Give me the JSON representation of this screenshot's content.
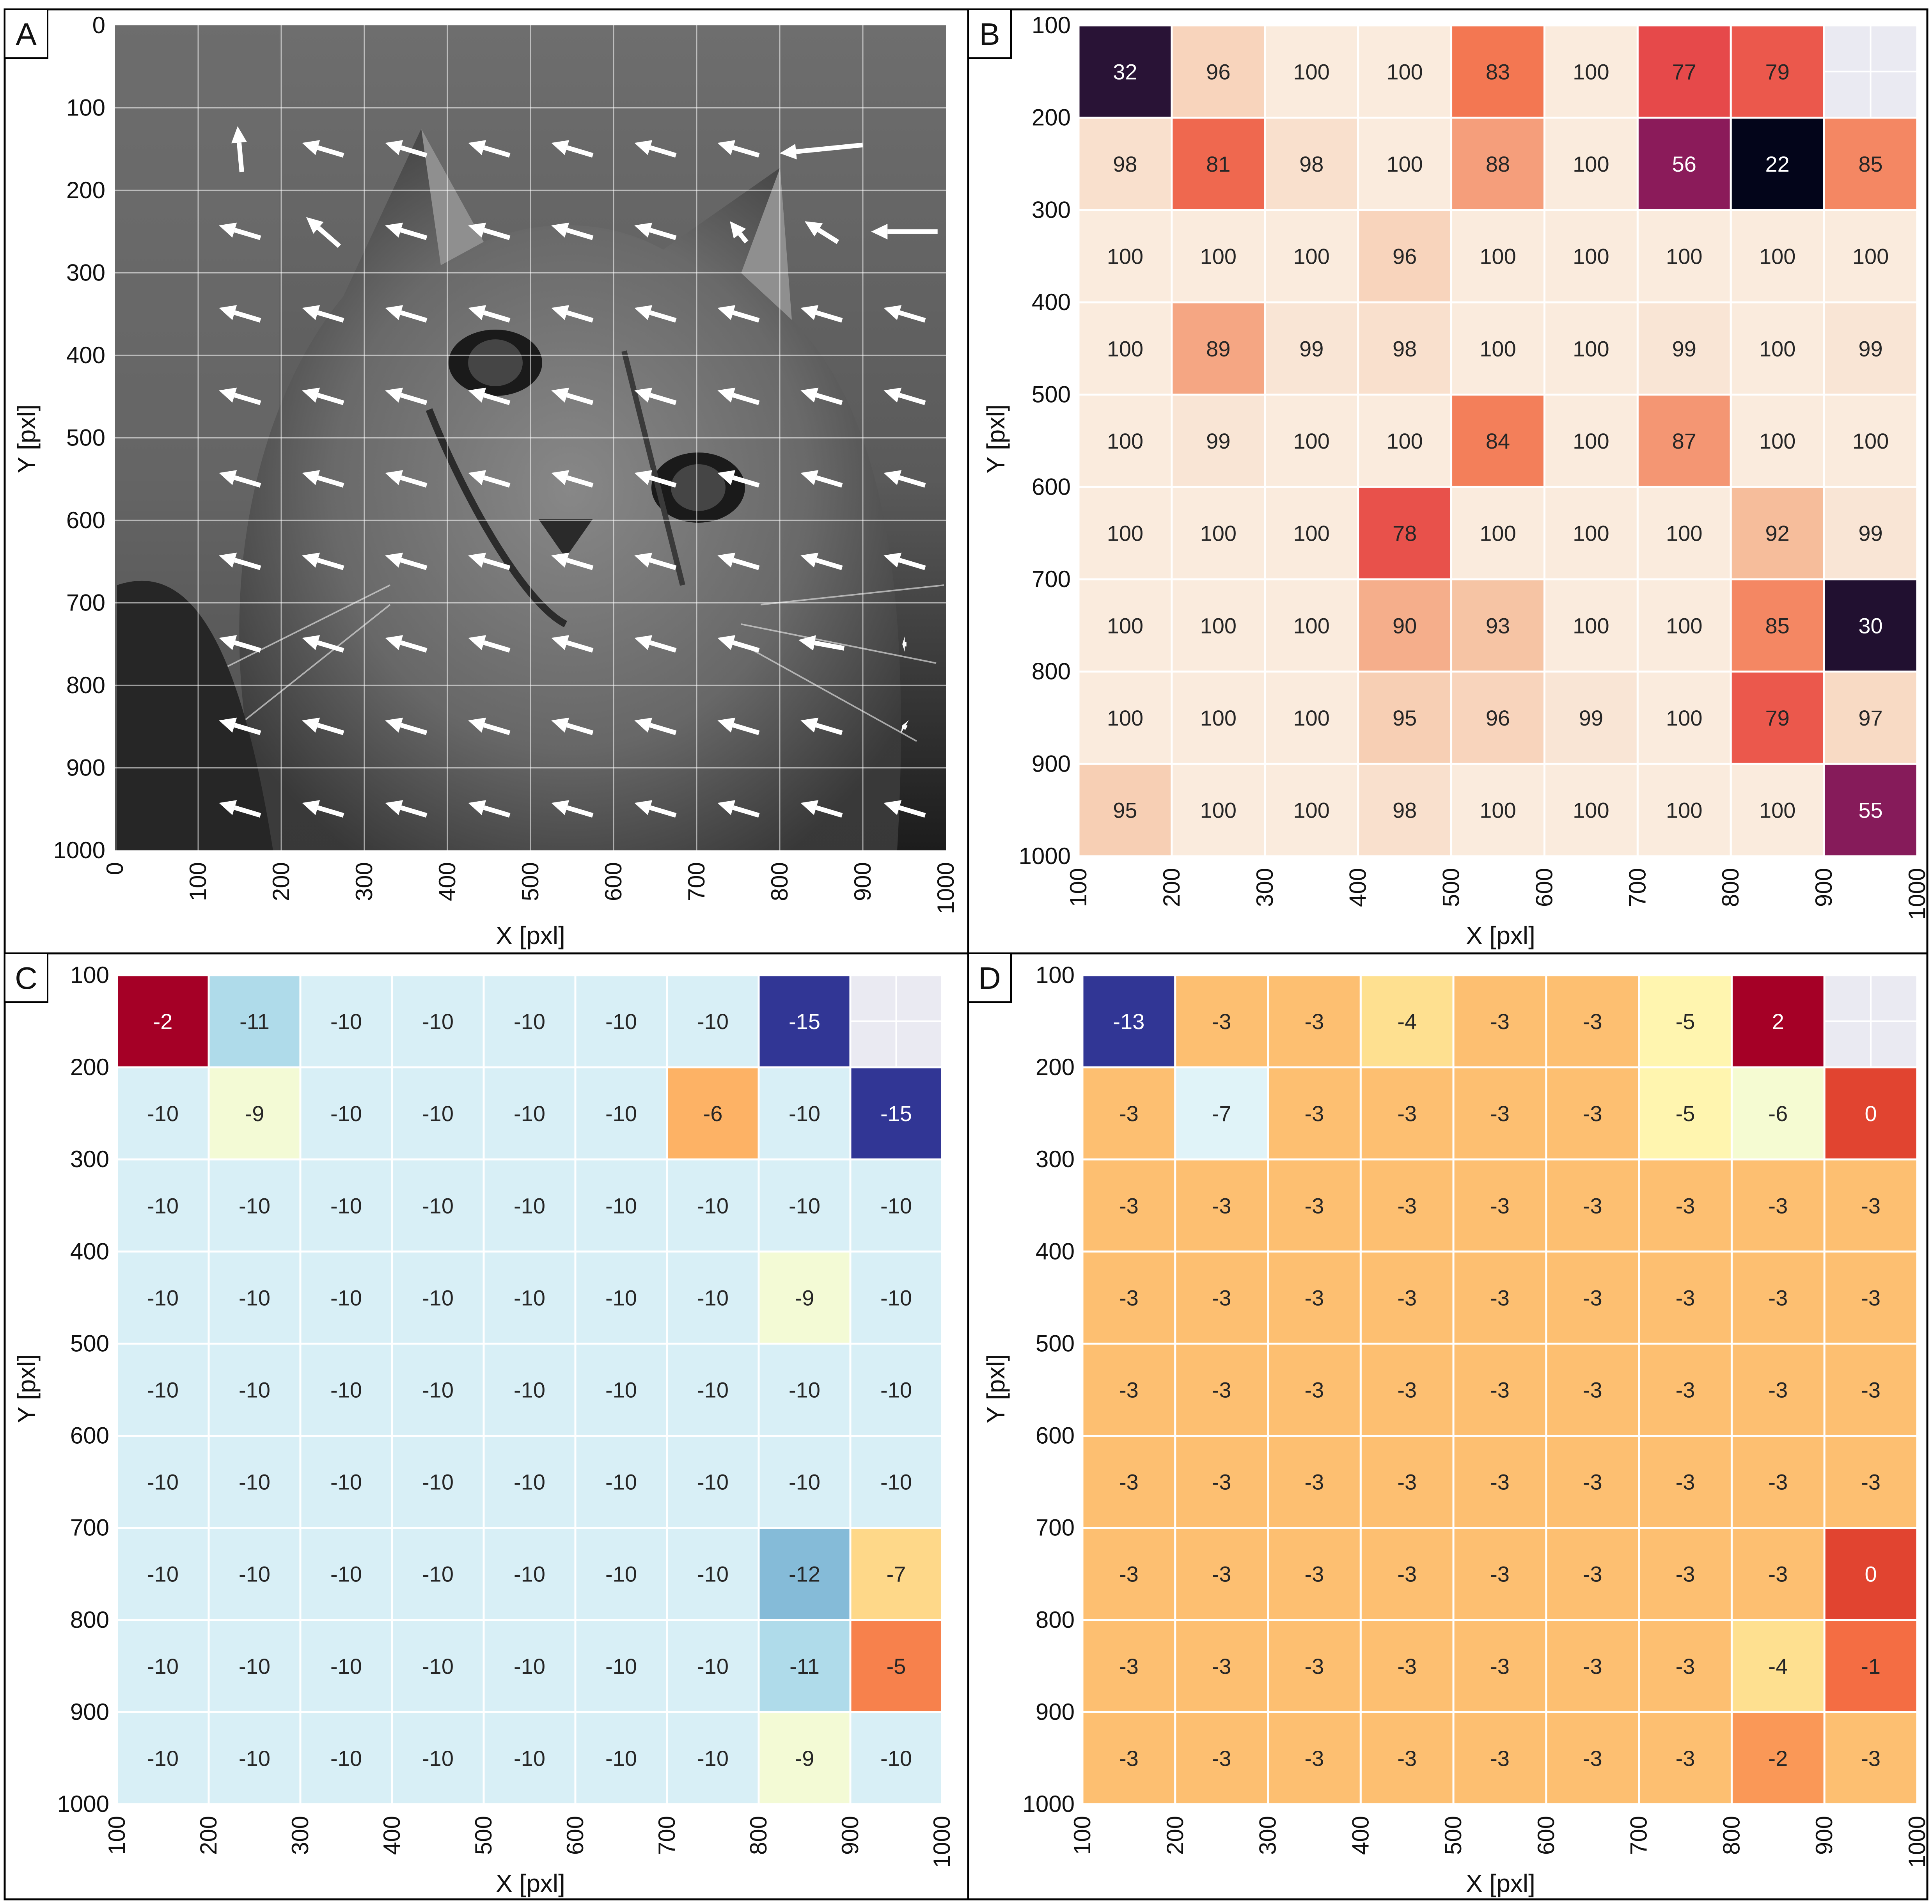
{
  "figure": {
    "panels": [
      "A",
      "B",
      "C",
      "D"
    ]
  },
  "chart_data": [
    {
      "panel_label": "A",
      "type": "quiver",
      "xlabel": "X [pxl]",
      "ylabel": "Y [pxl]",
      "xlim": [
        0,
        1000
      ],
      "ylim": [
        1000,
        0
      ],
      "xticks": [
        "0",
        "100",
        "200",
        "300",
        "400",
        "500",
        "600",
        "700",
        "800",
        "900",
        "1000"
      ],
      "yticks": [
        "0",
        "100",
        "200",
        "300",
        "400",
        "500",
        "600",
        "700",
        "800",
        "900",
        "1000"
      ],
      "background": "grayscale photograph of a tabby kitten",
      "arrow_color": "#ffffff",
      "grid_x": [
        150,
        250,
        350,
        450,
        550,
        650,
        750,
        850,
        950
      ],
      "grid_y": [
        150,
        250,
        350,
        450,
        550,
        650,
        750,
        850,
        950
      ],
      "vectors_u": [
        [
          -5,
          -50,
          -50,
          -50,
          -50,
          -50,
          -50,
          -100,
          null
        ],
        [
          -50,
          -40,
          -50,
          -50,
          -50,
          -50,
          -20,
          -40,
          -80
        ],
        [
          -50,
          -50,
          -50,
          -50,
          -50,
          -50,
          -50,
          -50,
          -50
        ],
        [
          -50,
          -50,
          -50,
          -50,
          -50,
          -50,
          -50,
          -50,
          -50
        ],
        [
          -50,
          -50,
          -50,
          -50,
          -50,
          -50,
          -50,
          -50,
          -50
        ],
        [
          -50,
          -50,
          -50,
          -50,
          -50,
          -50,
          -50,
          -50,
          -50
        ],
        [
          -50,
          -50,
          -50,
          -50,
          -50,
          -50,
          -50,
          -55,
          -5
        ],
        [
          -50,
          -50,
          -50,
          -50,
          -50,
          -50,
          -50,
          -50,
          -5
        ],
        [
          -50,
          -50,
          -50,
          -50,
          -50,
          -50,
          -50,
          -50,
          -50
        ]
      ],
      "vectors_v": [
        [
          -55,
          -15,
          -15,
          -15,
          -15,
          -15,
          -15,
          10,
          null
        ],
        [
          -15,
          -35,
          -15,
          -15,
          -15,
          -15,
          -25,
          -25,
          0
        ],
        [
          -15,
          -15,
          -15,
          -15,
          -15,
          -15,
          -15,
          -15,
          -15
        ],
        [
          -15,
          -15,
          -15,
          -15,
          -15,
          -15,
          -15,
          -15,
          -15
        ],
        [
          -15,
          -15,
          -15,
          -15,
          -15,
          -15,
          -15,
          -15,
          -15
        ],
        [
          -15,
          -15,
          -15,
          -15,
          -15,
          -15,
          -15,
          -15,
          -15
        ],
        [
          -15,
          -15,
          -15,
          -15,
          -15,
          -15,
          -15,
          -10,
          0
        ],
        [
          -15,
          -15,
          -15,
          -15,
          -15,
          -15,
          -15,
          -15,
          -3
        ],
        [
          -15,
          -15,
          -15,
          -15,
          -15,
          -15,
          -15,
          -15,
          -15
        ]
      ]
    },
    {
      "panel_label": "B",
      "type": "heatmap",
      "xlabel": "X [pxl]",
      "ylabel": "Y [pxl]",
      "xticks": [
        "100",
        "200",
        "300",
        "400",
        "500",
        "600",
        "700",
        "800",
        "900",
        "1000"
      ],
      "yticks": [
        "100",
        "200",
        "300",
        "400",
        "500",
        "600",
        "700",
        "800",
        "900",
        "1000"
      ],
      "colormap": "rocket",
      "vmin": 22,
      "vmax": 100,
      "missing_color": "#eaeaf2",
      "values": [
        [
          32,
          96,
          100,
          100,
          83,
          100,
          77,
          79,
          null
        ],
        [
          98,
          81,
          98,
          100,
          88,
          100,
          56,
          22,
          85
        ],
        [
          100,
          100,
          100,
          96,
          100,
          100,
          100,
          100,
          100
        ],
        [
          100,
          89,
          99,
          98,
          100,
          100,
          99,
          100,
          99
        ],
        [
          100,
          99,
          100,
          100,
          84,
          100,
          87,
          100,
          100
        ],
        [
          100,
          100,
          100,
          78,
          100,
          100,
          100,
          92,
          99
        ],
        [
          100,
          100,
          100,
          90,
          93,
          100,
          100,
          85,
          30
        ],
        [
          100,
          100,
          100,
          95,
          96,
          99,
          100,
          79,
          97
        ],
        [
          95,
          100,
          100,
          98,
          100,
          100,
          100,
          100,
          55
        ]
      ]
    },
    {
      "panel_label": "C",
      "type": "heatmap",
      "xlabel": "X [pxl]",
      "ylabel": "Y [pxl]",
      "xticks": [
        "100",
        "200",
        "300",
        "400",
        "500",
        "600",
        "700",
        "800",
        "900",
        "1000"
      ],
      "yticks": [
        "100",
        "200",
        "300",
        "400",
        "500",
        "600",
        "700",
        "800",
        "900",
        "1000"
      ],
      "colormap": "RdYlBu_r",
      "vmin": -15,
      "vmax": -2,
      "missing_color": "#eaeaf2",
      "values": [
        [
          -2,
          -11,
          -10,
          -10,
          -10,
          -10,
          -10,
          -15,
          null
        ],
        [
          -10,
          -9,
          -10,
          -10,
          -10,
          -10,
          -6,
          -10,
          -15
        ],
        [
          -10,
          -10,
          -10,
          -10,
          -10,
          -10,
          -10,
          -10,
          -10
        ],
        [
          -10,
          -10,
          -10,
          -10,
          -10,
          -10,
          -10,
          -9,
          -10
        ],
        [
          -10,
          -10,
          -10,
          -10,
          -10,
          -10,
          -10,
          -10,
          -10
        ],
        [
          -10,
          -10,
          -10,
          -10,
          -10,
          -10,
          -10,
          -10,
          -10
        ],
        [
          -10,
          -10,
          -10,
          -10,
          -10,
          -10,
          -10,
          -12,
          -7
        ],
        [
          -10,
          -10,
          -10,
          -10,
          -10,
          -10,
          -10,
          -11,
          -5
        ],
        [
          -10,
          -10,
          -10,
          -10,
          -10,
          -10,
          -10,
          -9,
          -10
        ]
      ]
    },
    {
      "panel_label": "D",
      "type": "heatmap",
      "xlabel": "X [pxl]",
      "ylabel": "Y [pxl]",
      "xticks": [
        "100",
        "200",
        "300",
        "400",
        "500",
        "600",
        "700",
        "800",
        "900",
        "1000"
      ],
      "yticks": [
        "100",
        "200",
        "300",
        "400",
        "500",
        "600",
        "700",
        "800",
        "900",
        "1000"
      ],
      "colormap": "RdYlBu_r",
      "vmin": -13,
      "vmax": 2,
      "missing_color": "#eaeaf2",
      "values": [
        [
          -13,
          -3,
          -3,
          -4,
          -3,
          -3,
          -5,
          2,
          null
        ],
        [
          -3,
          -7,
          -3,
          -3,
          -3,
          -3,
          -5,
          -6,
          0
        ],
        [
          -3,
          -3,
          -3,
          -3,
          -3,
          -3,
          -3,
          -3,
          -3
        ],
        [
          -3,
          -3,
          -3,
          -3,
          -3,
          -3,
          -3,
          -3,
          -3
        ],
        [
          -3,
          -3,
          -3,
          -3,
          -3,
          -3,
          -3,
          -3,
          -3
        ],
        [
          -3,
          -3,
          -3,
          -3,
          -3,
          -3,
          -3,
          -3,
          -3
        ],
        [
          -3,
          -3,
          -3,
          -3,
          -3,
          -3,
          -3,
          -3,
          0
        ],
        [
          -3,
          -3,
          -3,
          -3,
          -3,
          -3,
          -3,
          -4,
          -1
        ],
        [
          -3,
          -3,
          -3,
          -3,
          -3,
          -3,
          -3,
          -2,
          -3
        ]
      ]
    }
  ]
}
